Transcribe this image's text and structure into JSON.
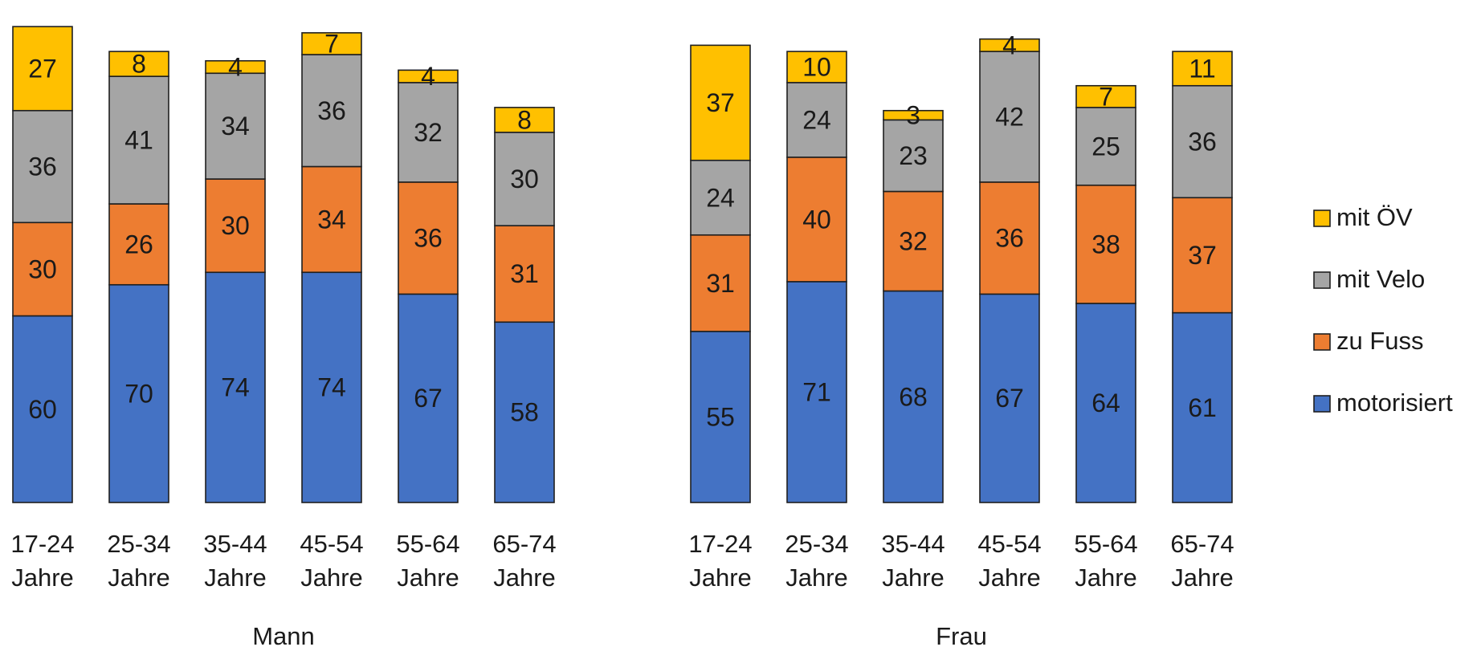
{
  "chart_data": {
    "type": "bar",
    "stacked": true,
    "title": "",
    "xlabel": "",
    "ylabel": "",
    "ylim": [
      0,
      160
    ],
    "grid": false,
    "legend_position": "right",
    "categories": [
      [
        "17-24",
        "Jahre"
      ],
      [
        "25-34",
        "Jahre"
      ],
      [
        "35-44",
        "Jahre"
      ],
      [
        "45-54",
        "Jahre"
      ],
      [
        "55-64",
        "Jahre"
      ],
      [
        "65-74",
        "Jahre"
      ]
    ],
    "series_styles": [
      {
        "name": "motorisiert",
        "color": "#4472C4"
      },
      {
        "name": "zu Fuss",
        "color": "#ED7D31"
      },
      {
        "name": "mit Velo",
        "color": "#A5A5A5"
      },
      {
        "name": "mit ÖV",
        "color": "#FFC000"
      }
    ],
    "legend_order": [
      "mit ÖV",
      "mit Velo",
      "zu Fuss",
      "motorisiert"
    ],
    "groups": [
      {
        "name": "Mann",
        "series": [
          {
            "name": "motorisiert",
            "values": [
              60,
              70,
              74,
              74,
              67,
              58
            ]
          },
          {
            "name": "zu Fuss",
            "values": [
              30,
              26,
              30,
              34,
              36,
              31
            ]
          },
          {
            "name": "mit Velo",
            "values": [
              36,
              41,
              34,
              36,
              32,
              30
            ]
          },
          {
            "name": "mit ÖV",
            "values": [
              27,
              8,
              4,
              7,
              4,
              8
            ]
          }
        ]
      },
      {
        "name": "Frau",
        "series": [
          {
            "name": "motorisiert",
            "values": [
              55,
              71,
              68,
              67,
              64,
              61
            ]
          },
          {
            "name": "zu Fuss",
            "values": [
              31,
              40,
              32,
              36,
              38,
              37
            ]
          },
          {
            "name": "mit Velo",
            "values": [
              24,
              24,
              23,
              42,
              25,
              36
            ]
          },
          {
            "name": "mit ÖV",
            "values": [
              37,
              10,
              3,
              4,
              7,
              11
            ]
          }
        ]
      }
    ]
  }
}
